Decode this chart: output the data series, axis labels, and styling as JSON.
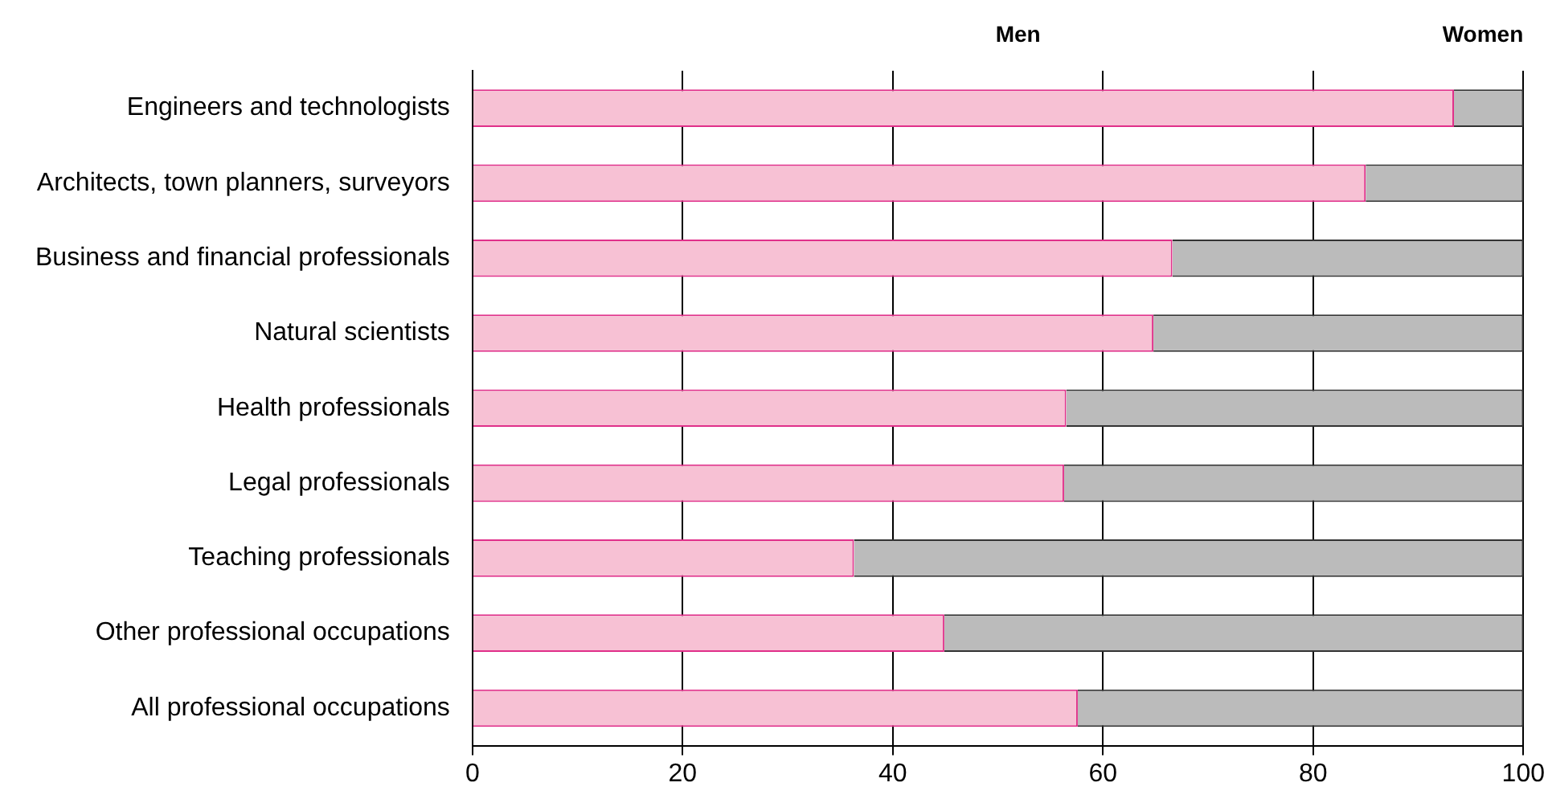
{
  "chart_data": {
    "type": "bar",
    "orientation": "horizontal",
    "stacked": true,
    "categories": [
      "Engineers and technologists",
      "Architects, town planners, surveyors",
      "Business and financial professionals",
      "Natural scientists",
      "Health professionals",
      "Legal professionals",
      "Teaching professionals",
      "Other professional occupations",
      "All professional occupations"
    ],
    "series": [
      {
        "name": "Men",
        "color": "#f7c1d4",
        "values": [
          93.4,
          85.0,
          66.6,
          64.8,
          56.5,
          56.3,
          36.3,
          44.9,
          57.6
        ]
      },
      {
        "name": "Women",
        "color": "#bbbbbb",
        "values": [
          6.6,
          15.0,
          33.4,
          35.2,
          43.5,
          43.7,
          63.7,
          55.1,
          42.4
        ]
      }
    ],
    "xlim": [
      0,
      100
    ],
    "xticks": [
      0,
      20,
      40,
      60,
      80,
      100
    ],
    "grid": "x",
    "legend": "top right"
  }
}
